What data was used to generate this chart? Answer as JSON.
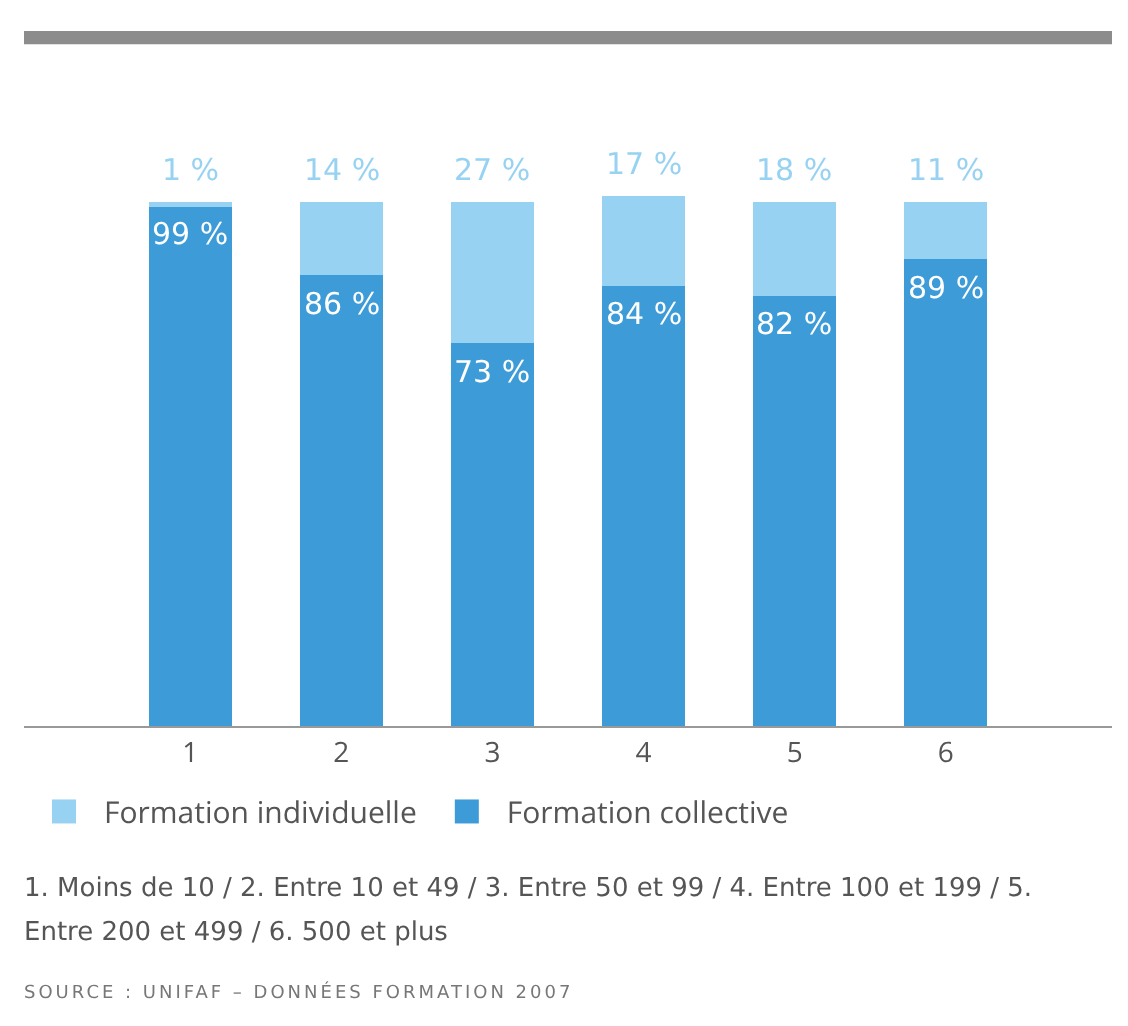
{
  "chart_data": {
    "type": "bar",
    "stacked": true,
    "categories": [
      "1",
      "2",
      "3",
      "4",
      "5",
      "6"
    ],
    "series": [
      {
        "name": "Formation collective",
        "color": "#3d9bd8",
        "values": [
          99,
          86,
          73,
          84,
          82,
          89
        ],
        "value_labels": [
          "99 %",
          "86 %",
          "73 %",
          "84 %",
          "82 %",
          "89 %"
        ]
      },
      {
        "name": "Formation individuelle",
        "color": "#97d2f2",
        "values": [
          1,
          14,
          27,
          17,
          18,
          11
        ],
        "value_labels": [
          "1 %",
          "14 %",
          "27 %",
          "17 %",
          "18 %",
          "11 %"
        ]
      }
    ],
    "legend": "bottom left",
    "grid": false,
    "annotations": [
      "1. Moins de 10 / 2. Entre 10 et 49 / 3. Entre 50 et 99 / 4. Entre 100 et 199 / 5. Entre 200 et 499 / 6. 500 et plus",
      "SOURCE : UNIFAF – DONNÉES FORMATION 2007"
    ]
  }
}
